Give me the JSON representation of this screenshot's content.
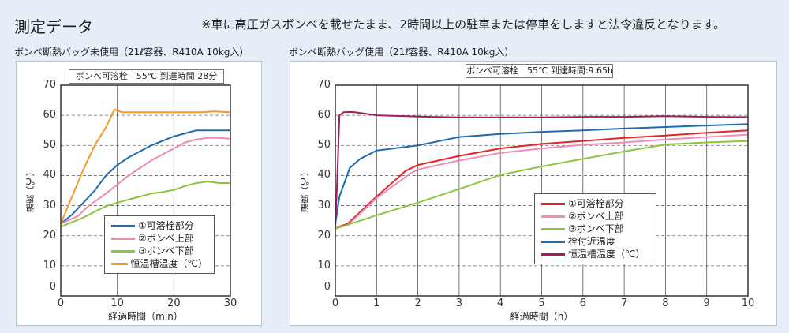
{
  "header": {
    "title": "測定データ",
    "notice": "※車に高圧ガスボンベを載せたまま、2時間以上の駐車または停車をしますと法令違反となります。"
  },
  "chart_data": [
    {
      "type": "line",
      "title": "ボンベ断熱バッグ未使用（21ℓ容器、R410A 10kg入）",
      "info": "ボンベ可溶栓　55℃ 到達時間:28分",
      "xlabel": "経過時間（min）",
      "ylabel": "温度（℃）",
      "xlim": [
        0,
        30
      ],
      "ylim": [
        0,
        70
      ],
      "xticks": [
        "0",
        "10",
        "20",
        "30"
      ],
      "yticks": [
        "0",
        "10",
        "20",
        "30",
        "40",
        "50",
        "60",
        "70"
      ],
      "legend": "bottom-center",
      "grid": true,
      "series": [
        {
          "name": "①可溶栓部分",
          "color": "#1e6bb0",
          "x": [
            0,
            2,
            4,
            6,
            8,
            10,
            12,
            14,
            16,
            18,
            20,
            22,
            24,
            26,
            28,
            30
          ],
          "y": [
            24,
            27,
            31,
            35,
            40,
            43.5,
            46,
            48,
            50,
            51.5,
            53,
            54,
            55,
            55,
            55,
            55
          ]
        },
        {
          "name": "②ボンベ上部",
          "color": "#ee88b4",
          "x": [
            0,
            3,
            5,
            8,
            10,
            12,
            14,
            16,
            18,
            20,
            22,
            24,
            26,
            28,
            30
          ],
          "y": [
            24,
            26.5,
            30,
            34,
            37,
            40,
            42.5,
            45,
            47,
            49,
            51,
            52,
            52.5,
            52.5,
            52.2
          ]
        },
        {
          "name": "③ボンベ下部",
          "color": "#8cc63f",
          "x": [
            0,
            2,
            4,
            6,
            8,
            10,
            12,
            14,
            16,
            18,
            20,
            22,
            24,
            26,
            28,
            30
          ],
          "y": [
            23,
            24.5,
            26,
            28,
            29.8,
            31,
            32,
            33,
            34,
            34.5,
            35.2,
            36.5,
            37.5,
            38,
            37.5,
            37.5
          ]
        },
        {
          "name": "恒温槽温度（℃）",
          "color": "#f39a2a",
          "x": [
            0,
            2,
            4,
            6,
            8,
            9.5,
            10,
            11,
            15,
            20,
            25,
            27,
            30
          ],
          "y": [
            24,
            33,
            42,
            50,
            56,
            62,
            61.5,
            61,
            61,
            61,
            61,
            61.3,
            61
          ]
        }
      ]
    },
    {
      "type": "line",
      "title": "ボンベ断熱バッグ使用（21ℓ容器、R410A 10kg入）",
      "info": "ボンベ可溶栓　55℃ 到達時間:9.65h",
      "xlabel": "経過時間（h）",
      "ylabel": "温度（℃）",
      "xlim": [
        0,
        10
      ],
      "ylim": [
        0,
        70
      ],
      "xticks": [
        "0",
        "1",
        "2",
        "3",
        "4",
        "5",
        "6",
        "7",
        "8",
        "9",
        "10"
      ],
      "yticks": [
        "0",
        "10",
        "20",
        "30",
        "40",
        "50",
        "60",
        "70"
      ],
      "legend": "bottom-center",
      "grid": true,
      "series": [
        {
          "name": "①可溶栓部分",
          "color": "#e0262b",
          "x": [
            0,
            0.3,
            1,
            1.7,
            2,
            3,
            4,
            5,
            6,
            7,
            8,
            9,
            10
          ],
          "y": [
            22.5,
            24,
            33,
            41.5,
            43.5,
            46.5,
            49,
            50.5,
            51.5,
            52.5,
            53.3,
            54.2,
            55
          ]
        },
        {
          "name": "②ボンベ上部",
          "color": "#f08cb8",
          "x": [
            0,
            0.3,
            1,
            1.8,
            2,
            3,
            4,
            5,
            6,
            7,
            8,
            9,
            10
          ],
          "y": [
            22.5,
            23.5,
            32.5,
            40.5,
            42,
            45,
            47.5,
            49,
            50.2,
            51,
            52,
            52.8,
            53.6
          ]
        },
        {
          "name": "③ボンベ下部",
          "color": "#8cc63f",
          "x": [
            0,
            1,
            2,
            3,
            4,
            5,
            6,
            7,
            8,
            9,
            10
          ],
          "y": [
            22.3,
            26.8,
            31,
            35.5,
            40.2,
            43,
            45.5,
            48,
            50.3,
            51,
            51.5
          ]
        },
        {
          "name": "栓付近温度",
          "color": "#1e6bb0",
          "x": [
            0,
            0.1,
            0.35,
            0.6,
            1,
            2,
            3,
            4,
            5,
            6,
            7,
            8,
            9,
            10
          ],
          "y": [
            24,
            33,
            42.5,
            45.5,
            48.3,
            50,
            52.8,
            53.8,
            54.5,
            55,
            55.6,
            56.1,
            56.6,
            57.1
          ]
        },
        {
          "name": "恒温槽温度（℃）",
          "color": "#a0205e",
          "x": [
            0,
            0.05,
            0.1,
            0.2,
            0.4,
            0.6,
            1,
            2,
            3,
            4,
            5,
            6,
            7,
            8,
            9,
            10
          ],
          "y": [
            23,
            40,
            60,
            61,
            61.1,
            60.8,
            60,
            59.6,
            59.3,
            59.3,
            59.3,
            59.5,
            59.5,
            59.7,
            59.5,
            59.4
          ]
        }
      ]
    }
  ]
}
